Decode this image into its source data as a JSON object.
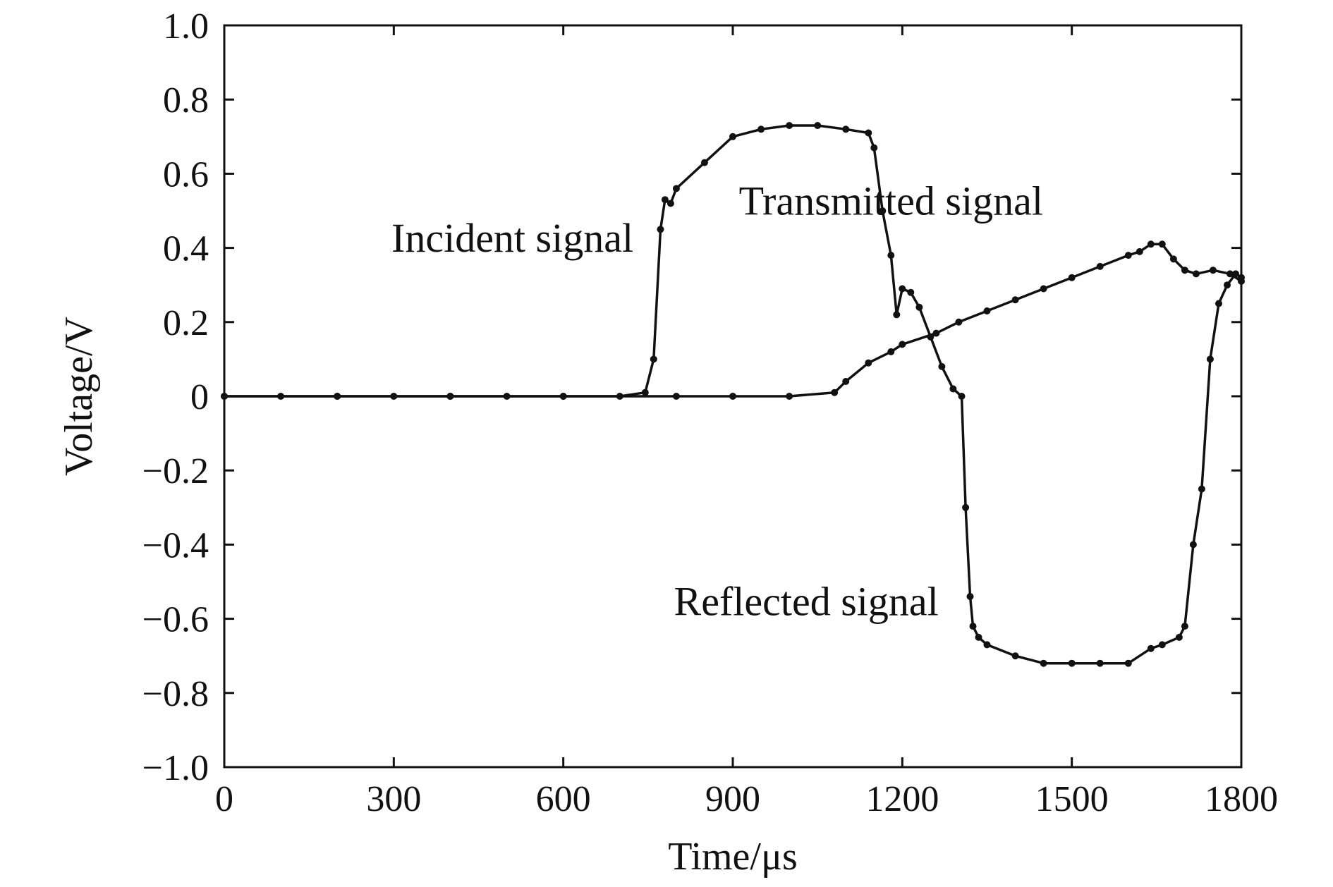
{
  "chart_data": {
    "type": "line",
    "title": "",
    "xlabel": "Time/μs",
    "ylabel": "Voltage/V",
    "xlim": [
      0,
      1800
    ],
    "ylim": [
      -1.0,
      1.0
    ],
    "xticks": [
      0,
      300,
      600,
      900,
      1200,
      1500,
      1800
    ],
    "xtick_labels": [
      "0",
      "300",
      "600",
      "900",
      "1200",
      "1500",
      "1800"
    ],
    "yticks": [
      1.0,
      0.8,
      0.6,
      0.4,
      0.2,
      0,
      -0.2,
      -0.4,
      -0.6,
      -0.8,
      -1.0
    ],
    "ytick_labels": [
      "1.0",
      "0.8",
      "0.6",
      "0.4",
      "0.2",
      "0",
      "−0.2",
      "−0.4",
      "−0.6",
      "−0.8",
      "−1.0"
    ],
    "grid": false,
    "series_color": "#111111",
    "series": [
      {
        "name": "Incident signal",
        "x": [
          0,
          100,
          200,
          300,
          400,
          500,
          600,
          700,
          745,
          760,
          772,
          780,
          790,
          800,
          850,
          900,
          950,
          1000,
          1050,
          1100,
          1140,
          1150,
          1165,
          1180,
          1190,
          1200,
          1215,
          1230,
          1250,
          1270,
          1290,
          1305,
          1312,
          1320,
          1325,
          1335,
          1350,
          1400,
          1450,
          1500,
          1550,
          1600,
          1640,
          1660,
          1690,
          1700,
          1715,
          1730,
          1745,
          1760,
          1775,
          1790,
          1800
        ],
        "y": [
          0,
          0,
          0,
          0,
          0,
          0,
          0,
          0,
          0.01,
          0.1,
          0.45,
          0.53,
          0.52,
          0.56,
          0.63,
          0.7,
          0.72,
          0.73,
          0.73,
          0.72,
          0.71,
          0.67,
          0.5,
          0.38,
          0.22,
          0.29,
          0.28,
          0.24,
          0.16,
          0.08,
          0.02,
          0,
          -0.3,
          -0.54,
          -0.62,
          -0.65,
          -0.67,
          -0.7,
          -0.72,
          -0.72,
          -0.72,
          -0.72,
          -0.68,
          -0.67,
          -0.65,
          -0.62,
          -0.4,
          -0.25,
          0.1,
          0.25,
          0.3,
          0.33,
          0.32
        ]
      },
      {
        "name": "Transmitted signal",
        "x": [
          0,
          200,
          400,
          600,
          800,
          900,
          1000,
          1080,
          1100,
          1140,
          1180,
          1200,
          1260,
          1300,
          1350,
          1400,
          1450,
          1500,
          1550,
          1600,
          1620,
          1640,
          1660,
          1680,
          1700,
          1720,
          1750,
          1780,
          1800
        ],
        "y": [
          0,
          0,
          0,
          0,
          0,
          0,
          0,
          0.01,
          0.04,
          0.09,
          0.12,
          0.14,
          0.17,
          0.2,
          0.23,
          0.26,
          0.29,
          0.32,
          0.35,
          0.38,
          0.39,
          0.41,
          0.41,
          0.37,
          0.34,
          0.33,
          0.34,
          0.33,
          0.31
        ]
      }
    ],
    "annotations": [
      {
        "text": "Incident signal",
        "x": 510,
        "y": 0.39
      },
      {
        "text": "Transmitted signal",
        "x": 1180,
        "y": 0.49
      },
      {
        "text": "Reflected signal",
        "x": 1030,
        "y": -0.59
      }
    ]
  }
}
